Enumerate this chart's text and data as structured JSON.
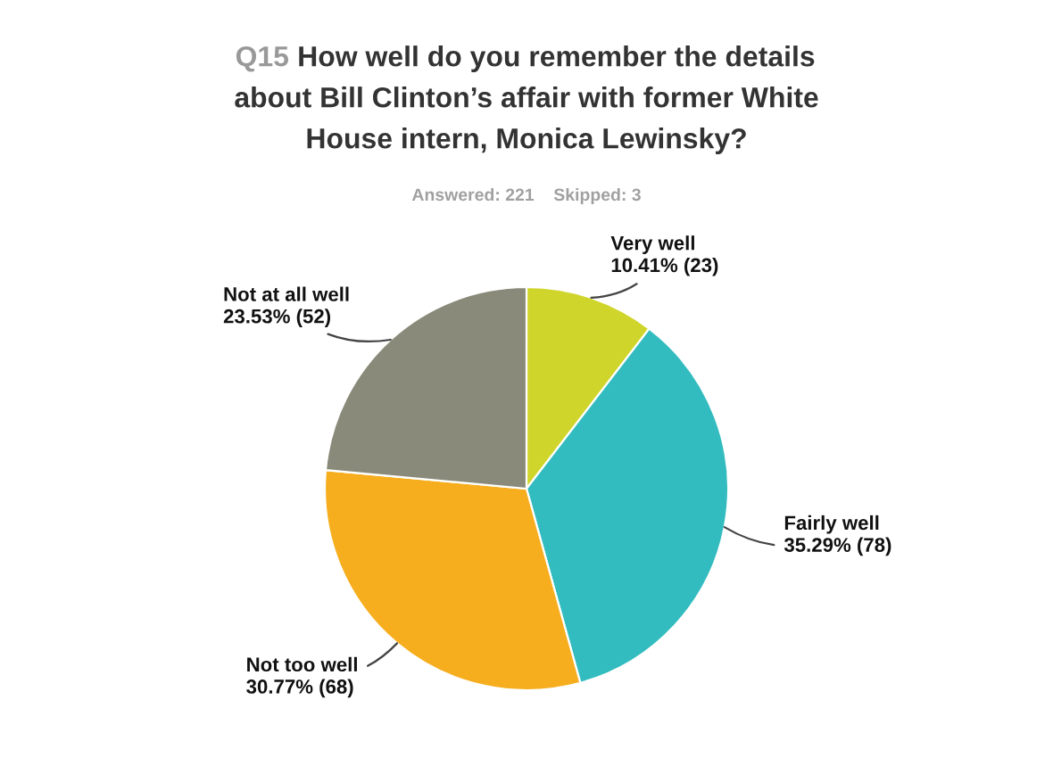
{
  "chart_data": {
    "type": "pie",
    "title": "Q15 How well do you remember the details\nabout Bill Clinton’s affair with former White\nHouse intern, Monica Lewinsky?",
    "subtitle": "Answered: 221    Skipped: 3",
    "categories": [
      "Very well",
      "Fairly well",
      "Not too well",
      "Not at all well"
    ],
    "values": [
      10.41,
      35.29,
      30.77,
      23.53
    ],
    "value_labels": [
      "10.41% (23)",
      "35.29% (78)",
      "30.77% (68)",
      "23.53% (52)"
    ],
    "colors": [
      "#cfd52a",
      "#33bcbf",
      "#f6ae1f",
      "#898a79"
    ]
  }
}
